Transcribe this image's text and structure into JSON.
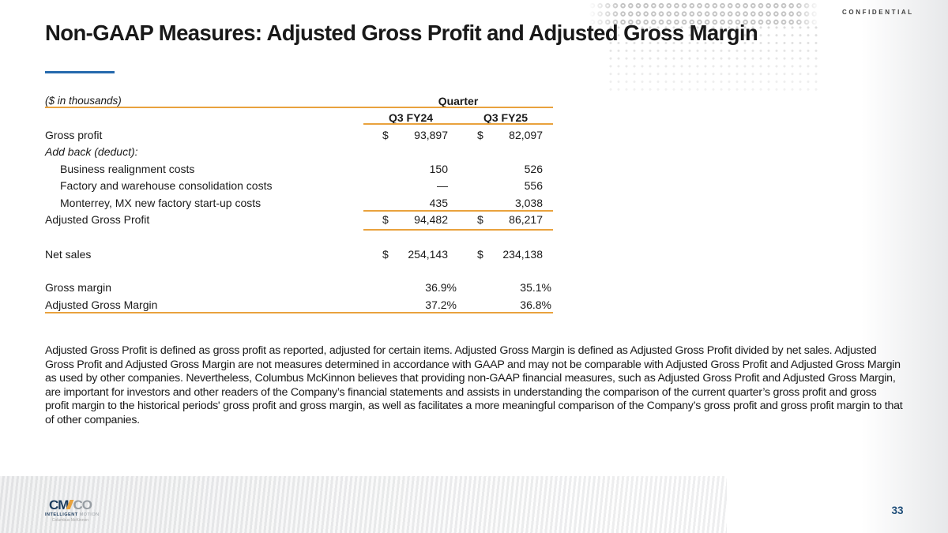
{
  "slide": {
    "confidential": "CONFIDENTIAL",
    "title": "Non-GAAP Measures: Adjusted Gross Profit and Adjusted Gross Margin",
    "page_number": "33"
  },
  "table": {
    "units_note": "($ in thousands)",
    "group_header": "Quarter",
    "currency_symbol": "$",
    "columns": [
      {
        "label": "Q3 FY24"
      },
      {
        "label": "Q3 FY25"
      }
    ],
    "rows": [
      {
        "label": "Gross profit",
        "values": [
          "93,897",
          "82,097"
        ]
      },
      {
        "label": "Add back (deduct):",
        "values": [
          "",
          ""
        ]
      },
      {
        "label": "Business realignment costs",
        "values": [
          "150",
          "526"
        ]
      },
      {
        "label": "Factory and warehouse consolidation costs",
        "values": [
          "—",
          "556"
        ]
      },
      {
        "label": "Monterrey, MX new factory start-up costs",
        "values": [
          "435",
          "3,038"
        ]
      },
      {
        "label": "Adjusted Gross Profit",
        "values": [
          "94,482",
          "86,217"
        ]
      },
      {
        "label": "Net sales",
        "values": [
          "254,143",
          "234,138"
        ]
      },
      {
        "label": "Gross margin",
        "values": [
          "36.9%",
          "35.1%"
        ]
      },
      {
        "label": "Adjusted Gross Margin",
        "values": [
          "37.2%",
          "36.8%"
        ]
      }
    ]
  },
  "footnote": "Adjusted Gross Profit is defined as gross profit as reported, adjusted for certain items.  Adjusted Gross Margin is defined as Adjusted Gross Profit divided by net sales. Adjusted Gross Profit and Adjusted Gross Margin are not measures determined in accordance with GAAP and may not be comparable with Adjusted Gross Profit and Adjusted Gross Margin as used by other companies.  Nevertheless, Columbus McKinnon believes that providing non-GAAP financial measures, such as Adjusted Gross Profit and Adjusted Gross Margin, are important for investors and other readers of the Company’s financial statements and assists in understanding the comparison of the current quarter’s gross profit and gross profit margin to the historical periods' gross profit and gross margin, as well as facilitates a more meaningful comparison of the Company’s gross profit and gross profit margin to that of other companies.",
  "logo": {
    "letters_primary": "CM",
    "letters_secondary": "CO",
    "tagline_primary": "INTELLIGENT",
    "tagline_secondary": " MOTION",
    "company_name": "Columbus McKinnon"
  },
  "colors": {
    "accent_orange": "#E9A23D",
    "accent_blue": "#2569AD",
    "navy_page_number": "#1F4E79",
    "title_text": "#191919"
  }
}
